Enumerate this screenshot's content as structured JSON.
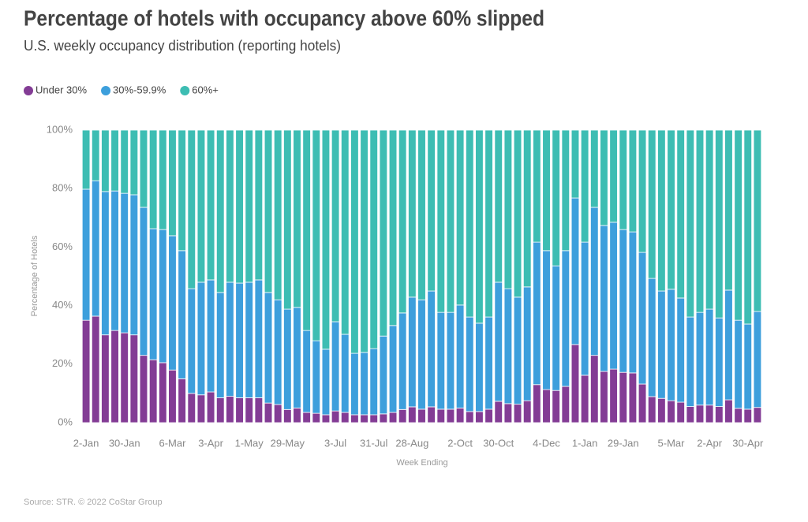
{
  "chart_data": {
    "type": "stacked_bar",
    "title": "Percentage of hotels with occupancy above 60% slipped",
    "subtitle": "U.S. weekly occupancy distribution (reporting hotels)",
    "source": "Source: STR. © 2022 CoStar Group",
    "x_label": "Week Ending",
    "y_label": "Percentage of Hotels",
    "categories": [
      "2-Jan",
      null,
      null,
      null,
      "30-Jan",
      null,
      null,
      null,
      null,
      "6-Mar",
      null,
      null,
      null,
      "3-Apr",
      null,
      null,
      null,
      "1-May",
      null,
      null,
      null,
      "29-May",
      null,
      null,
      null,
      null,
      "3-Jul",
      null,
      null,
      null,
      "31-Jul",
      null,
      null,
      null,
      "28-Aug",
      null,
      null,
      null,
      null,
      "2-Oct",
      null,
      null,
      null,
      "30-Oct",
      null,
      null,
      null,
      null,
      "4-Dec",
      null,
      null,
      null,
      "1-Jan",
      null,
      null,
      null,
      "29-Jan",
      null,
      null,
      null,
      null,
      "5-Mar",
      null,
      null,
      null,
      "2-Apr",
      null,
      null,
      null,
      "30-Apr",
      null
    ],
    "series": [
      {
        "name": "Under 30%",
        "color": "#833c95",
        "values": [
          35,
          36.4,
          30,
          31.5,
          30.7,
          30,
          23,
          21.5,
          20.5,
          18,
          15,
          10,
          9.5,
          10.5,
          8.5,
          9,
          8.5,
          8.5,
          8.5,
          6.7,
          6.2,
          4.5,
          5,
          3.5,
          3.2,
          2.7,
          4,
          3.5,
          2.7,
          2.7,
          2.7,
          3,
          3.5,
          4.5,
          5.4,
          4.6,
          5.4,
          4.6,
          4.6,
          5,
          3.8,
          3.8,
          4.6,
          7.3,
          6.5,
          6.3,
          7.5,
          13,
          11.3,
          11,
          12.4,
          26.7,
          16.2,
          23,
          17.5,
          18.3,
          17.2,
          17,
          13.2,
          8.9,
          8.3,
          7.5,
          7,
          5.5,
          6,
          6,
          5.5,
          7.8,
          4.9,
          4.6,
          5.2
        ]
      },
      {
        "name": "30%-59.9%",
        "color": "#3d9fdc",
        "values": [
          44.8,
          46.3,
          49,
          47.7,
          47.7,
          47.9,
          50.6,
          44.8,
          45.5,
          45.9,
          43.8,
          35.8,
          38.5,
          38.3,
          36,
          39,
          39.2,
          39.5,
          40.3,
          37.8,
          35.8,
          34.3,
          34.4,
          28,
          24.8,
          22.4,
          30.5,
          26.7,
          21,
          21.3,
          22.6,
          26.6,
          29.7,
          33,
          37.5,
          37.4,
          39.6,
          33.1,
          33.1,
          35.2,
          32.3,
          30.2,
          31.5,
          40.7,
          39.3,
          36.6,
          38.9,
          48.7,
          47.5,
          42.6,
          46.4,
          50.1,
          45.5,
          50.6,
          49.9,
          50.2,
          48.8,
          48.2,
          45,
          40.4,
          36.7,
          38.1,
          35.6,
          30.6,
          31.7,
          32.8,
          30.3,
          37.5,
          30.1,
          29.1,
          32.8
        ]
      },
      {
        "name": "60%+",
        "color": "#3dbdb3",
        "values": [
          20.2,
          17.3,
          21,
          20.8,
          21.6,
          22.1,
          26.4,
          33.7,
          34,
          36.1,
          41.2,
          54.2,
          52,
          51.2,
          55.5,
          52,
          52.3,
          52,
          51.2,
          55.5,
          58,
          61.2,
          60.6,
          68.5,
          72,
          74.9,
          65.5,
          69.8,
          76.3,
          76,
          74.7,
          70.4,
          66.8,
          62.5,
          57.1,
          58,
          55,
          62.3,
          62.3,
          59.8,
          63.9,
          66,
          63.9,
          52,
          54.2,
          57.1,
          53.6,
          38.3,
          41.2,
          46.4,
          41.2,
          23.2,
          38.3,
          26.4,
          32.6,
          31.5,
          34,
          34.8,
          41.8,
          50.7,
          55,
          54.4,
          57.4,
          63.9,
          62.3,
          61.2,
          64.2,
          54.7,
          65,
          66.3,
          62
        ]
      }
    ],
    "ylim": [
      0,
      100
    ],
    "yticks": [
      {
        "value": 0,
        "label": "0%"
      },
      {
        "value": 20,
        "label": "20%"
      },
      {
        "value": 40,
        "label": "40%"
      },
      {
        "value": 60,
        "label": "60%"
      },
      {
        "value": 80,
        "label": "80%"
      },
      {
        "value": 100,
        "label": "100%"
      }
    ],
    "grid": false,
    "legend": "top-left"
  }
}
